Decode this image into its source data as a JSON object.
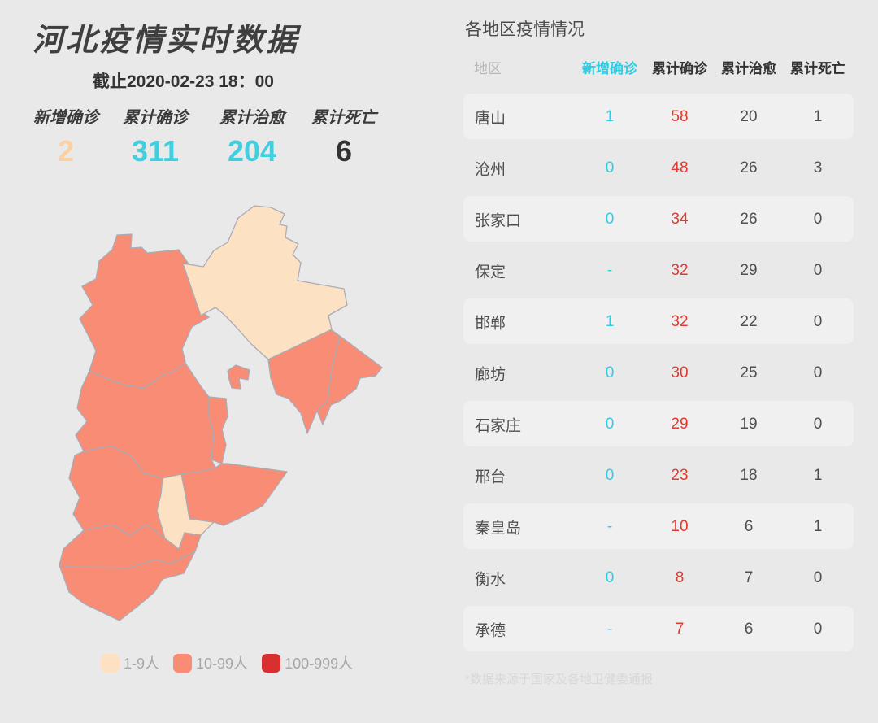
{
  "theme": {
    "bg": "#e9e9e9",
    "stripe": "#f0f0f0",
    "cyan": "#2ecde4",
    "red": "#e13a30",
    "dark": "#3f3f3f",
    "text": "#4f4f4f",
    "muted": "#b8b8b8",
    "faint": "#d8d8d8",
    "peach": "#fbd0a2"
  },
  "left_panel": {
    "title": "河北疫情实时数据",
    "as_of": "截止2020-02-23 18：00",
    "stats": [
      {
        "label": "新增确诊",
        "value": "2",
        "color": "#fbd0a2"
      },
      {
        "label": "累计确诊",
        "value": "311",
        "color": "#3ecfe0"
      },
      {
        "label": "累计治愈",
        "value": "204",
        "color": "#3ecfe0"
      },
      {
        "label": "累计死亡",
        "value": "6",
        "color": "#323232"
      }
    ],
    "legend": [
      {
        "label": "1-9人",
        "color": "#fce1c2"
      },
      {
        "label": "10-99人",
        "color": "#f88c75"
      },
      {
        "label": "100-999人",
        "color": "#d63130"
      }
    ]
  },
  "map": {
    "colors": {
      "level1": "#fce1c2",
      "level2": "#f88c75",
      "level3": "#d63130",
      "border": "#aaacb6"
    },
    "regions": [
      {
        "name": "zhangjiakou",
        "label": "张家口",
        "level": "level2"
      },
      {
        "name": "chengde",
        "label": "承德",
        "level": "level1"
      },
      {
        "name": "qinhuangdao",
        "label": "秦皇岛",
        "level": "level2"
      },
      {
        "name": "tangshan",
        "label": "唐山",
        "level": "level2"
      },
      {
        "name": "langfang",
        "label": "廊坊",
        "level": "level2"
      },
      {
        "name": "baoding",
        "label": "保定",
        "level": "level2"
      },
      {
        "name": "cangzhou",
        "label": "沧州",
        "level": "level2"
      },
      {
        "name": "hengshui",
        "label": "衡水",
        "level": "level1"
      },
      {
        "name": "shijiazhuang",
        "label": "石家庄",
        "level": "level2"
      },
      {
        "name": "xingtai",
        "label": "邢台",
        "level": "level2"
      },
      {
        "name": "handan",
        "label": "邯郸",
        "level": "level2"
      }
    ]
  },
  "table": {
    "title": "各地区疫情情况",
    "columns": [
      "地区",
      "新增确诊",
      "累计确诊",
      "累计治愈",
      "累计死亡"
    ],
    "rows": [
      {
        "region": "唐山",
        "new": "1",
        "confirmed": "58",
        "cured": "20",
        "deaths": "1"
      },
      {
        "region": "沧州",
        "new": "0",
        "confirmed": "48",
        "cured": "26",
        "deaths": "3"
      },
      {
        "region": "张家口",
        "new": "0",
        "confirmed": "34",
        "cured": "26",
        "deaths": "0"
      },
      {
        "region": "保定",
        "new": "-",
        "confirmed": "32",
        "cured": "29",
        "deaths": "0"
      },
      {
        "region": "邯郸",
        "new": "1",
        "confirmed": "32",
        "cured": "22",
        "deaths": "0"
      },
      {
        "region": "廊坊",
        "new": "0",
        "confirmed": "30",
        "cured": "25",
        "deaths": "0"
      },
      {
        "region": "石家庄",
        "new": "0",
        "confirmed": "29",
        "cured": "19",
        "deaths": "0"
      },
      {
        "region": "邢台",
        "new": "0",
        "confirmed": "23",
        "cured": "18",
        "deaths": "1"
      },
      {
        "region": "秦皇岛",
        "new": "-",
        "confirmed": "10",
        "cured": "6",
        "deaths": "1"
      },
      {
        "region": "衡水",
        "new": "0",
        "confirmed": "8",
        "cured": "7",
        "deaths": "0"
      },
      {
        "region": "承德",
        "new": "-",
        "confirmed": "7",
        "cured": "6",
        "deaths": "0"
      }
    ],
    "footnote": "*数据来源于国家及各地卫健委通报"
  },
  "chart_data": [
    {
      "type": "heatmap",
      "subtype": "choropleth-map",
      "title": "河北疫情实时数据",
      "as_of": "截止2020-02-23 18：00",
      "totals": {
        "新增确诊": 2,
        "累计确诊": 311,
        "累计治愈": 204,
        "累计死亡": 6
      },
      "regions": [
        "唐山",
        "沧州",
        "张家口",
        "保定",
        "邯郸",
        "廊坊",
        "石家庄",
        "邢台",
        "秦皇岛",
        "衡水",
        "承德"
      ],
      "confirmed": [
        58,
        48,
        34,
        32,
        32,
        30,
        29,
        23,
        10,
        8,
        7
      ],
      "legend": [
        {
          "range": "1-9人",
          "color": "#fce1c2"
        },
        {
          "range": "10-99人",
          "color": "#f88c75"
        },
        {
          "range": "100-999人",
          "color": "#d63130"
        }
      ]
    },
    {
      "type": "table",
      "title": "各地区疫情情况",
      "columns": [
        "地区",
        "新增确诊",
        "累计确诊",
        "累计治愈",
        "累计死亡"
      ],
      "rows": [
        [
          "唐山",
          "1",
          58,
          20,
          1
        ],
        [
          "沧州",
          "0",
          48,
          26,
          3
        ],
        [
          "张家口",
          "0",
          34,
          26,
          0
        ],
        [
          "保定",
          "-",
          32,
          29,
          0
        ],
        [
          "邯郸",
          "1",
          32,
          22,
          0
        ],
        [
          "廊坊",
          "0",
          30,
          25,
          0
        ],
        [
          "石家庄",
          "0",
          29,
          19,
          0
        ],
        [
          "邢台",
          "0",
          23,
          18,
          1
        ],
        [
          "秦皇岛",
          "-",
          10,
          6,
          1
        ],
        [
          "衡水",
          "0",
          8,
          7,
          0
        ],
        [
          "承德",
          "-",
          7,
          6,
          0
        ]
      ]
    }
  ]
}
